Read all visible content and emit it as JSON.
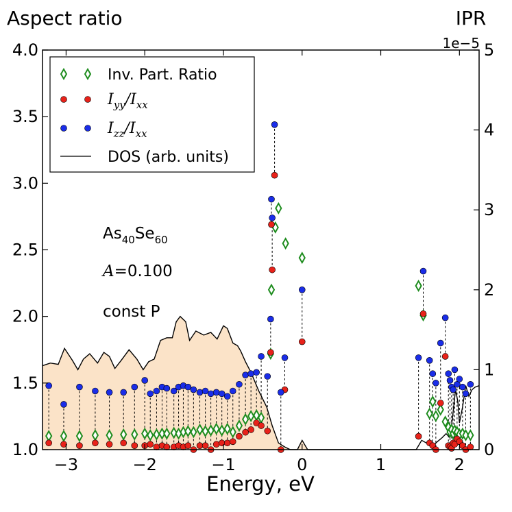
{
  "chart_data": {
    "type": "scatter",
    "left_title": "Aspect ratio",
    "right_title": "IPR",
    "right_multiplier": "1e−5",
    "xlabel": "Energy, eV",
    "xlim": [
      -3.3,
      2.25
    ],
    "ylim_left": [
      1.0,
      4.0
    ],
    "ylim_right": [
      0,
      5
    ],
    "x_ticks": [
      -3,
      -2,
      -1,
      0,
      1,
      2
    ],
    "x_tick_labels": [
      "−3",
      "−2",
      "−1",
      "0",
      "1",
      "2"
    ],
    "y_left_ticks": [
      1.0,
      1.5,
      2.0,
      2.5,
      3.0,
      3.5,
      4.0
    ],
    "y_left_tick_labels": [
      "1.0",
      "1.5",
      "2.0",
      "2.5",
      "3.0",
      "3.5",
      "4.0"
    ],
    "y_right_ticks": [
      0,
      1,
      2,
      3,
      4,
      5
    ],
    "y_right_tick_labels": [
      "0",
      "1",
      "2",
      "3",
      "4",
      "5"
    ],
    "annotations": {
      "material": "As",
      "material_sub1": "40",
      "material_mid": "Se",
      "material_sub2": "60",
      "param_symbol": "A",
      "param_value": "=0.100",
      "condition": "const P"
    },
    "legend": {
      "ipr": "Inv. Part. Ratio",
      "iyy_base": "I",
      "iyy_sub": "yy",
      "izz_sub": "zz",
      "ixx_sub": "xx",
      "slash": "/",
      "dos": "DOS (arb. units)"
    },
    "colors": {
      "ipr": "#1e8c1e",
      "iyy": "#e8221a",
      "izz": "#1a2de8",
      "dos_fill": "#fbe3c8",
      "dos_line": "#000000"
    },
    "dos_curve": [
      [
        -3.3,
        1.63
      ],
      [
        -3.2,
        1.65
      ],
      [
        -3.1,
        1.64
      ],
      [
        -3.02,
        1.76
      ],
      [
        -2.92,
        1.67
      ],
      [
        -2.85,
        1.6
      ],
      [
        -2.78,
        1.68
      ],
      [
        -2.7,
        1.72
      ],
      [
        -2.6,
        1.65
      ],
      [
        -2.52,
        1.73
      ],
      [
        -2.45,
        1.7
      ],
      [
        -2.38,
        1.61
      ],
      [
        -2.3,
        1.67
      ],
      [
        -2.2,
        1.75
      ],
      [
        -2.1,
        1.68
      ],
      [
        -2.02,
        1.6
      ],
      [
        -1.95,
        1.66
      ],
      [
        -1.88,
        1.68
      ],
      [
        -1.8,
        1.82
      ],
      [
        -1.72,
        1.84
      ],
      [
        -1.65,
        1.84
      ],
      [
        -1.6,
        1.96
      ],
      [
        -1.55,
        2.0
      ],
      [
        -1.48,
        1.96
      ],
      [
        -1.43,
        1.82
      ],
      [
        -1.35,
        1.89
      ],
      [
        -1.25,
        1.86
      ],
      [
        -1.16,
        1.88
      ],
      [
        -1.08,
        1.83
      ],
      [
        -1.0,
        1.93
      ],
      [
        -0.95,
        1.91
      ],
      [
        -0.88,
        1.8
      ],
      [
        -0.82,
        1.78
      ],
      [
        -0.78,
        1.74
      ],
      [
        -0.72,
        1.66
      ],
      [
        -0.65,
        1.58
      ],
      [
        -0.55,
        1.44
      ],
      [
        -0.45,
        1.32
      ],
      [
        -0.38,
        1.18
      ],
      [
        -0.3,
        1.05
      ],
      [
        -0.22,
        1.02
      ],
      [
        -0.15,
        1.0
      ],
      [
        -0.06,
        1.0
      ],
      [
        0.0,
        1.07
      ],
      [
        0.07,
        1.0
      ],
      [
        0.2,
        1.0
      ],
      [
        1.0,
        1.0
      ],
      [
        1.45,
        1.0
      ],
      [
        1.52,
        1.07
      ],
      [
        1.58,
        1.05
      ],
      [
        1.65,
        1.02
      ],
      [
        1.72,
        1.06
      ],
      [
        1.78,
        1.09
      ],
      [
        1.83,
        1.12
      ],
      [
        1.88,
        1.09
      ],
      [
        1.92,
        1.28
      ],
      [
        1.95,
        1.45
      ],
      [
        1.98,
        1.36
      ],
      [
        2.0,
        1.2
      ],
      [
        2.04,
        1.32
      ],
      [
        2.08,
        1.48
      ],
      [
        2.12,
        1.4
      ],
      [
        2.16,
        1.45
      ],
      [
        2.2,
        1.47
      ],
      [
        2.25,
        1.48
      ]
    ],
    "aspect_points": [
      {
        "e": -3.22,
        "izz": 1.48,
        "iyy": 1.05
      },
      {
        "e": -3.03,
        "izz": 1.34,
        "iyy": 1.04
      },
      {
        "e": -2.83,
        "izz": 1.47,
        "iyy": 1.03
      },
      {
        "e": -2.63,
        "izz": 1.44,
        "iyy": 1.05
      },
      {
        "e": -2.45,
        "izz": 1.43,
        "iyy": 1.04
      },
      {
        "e": -2.27,
        "izz": 1.43,
        "iyy": 1.05
      },
      {
        "e": -2.13,
        "izz": 1.47,
        "iyy": 1.03
      },
      {
        "e": -2.0,
        "izz": 1.52,
        "iyy": 1.03
      },
      {
        "e": -1.93,
        "izz": 1.42,
        "iyy": 1.04
      },
      {
        "e": -1.85,
        "izz": 1.44,
        "iyy": 1.02
      },
      {
        "e": -1.78,
        "izz": 1.47,
        "iyy": 1.03
      },
      {
        "e": -1.72,
        "izz": 1.46,
        "iyy": 1.02
      },
      {
        "e": -1.63,
        "izz": 1.44,
        "iyy": 1.02
      },
      {
        "e": -1.57,
        "izz": 1.47,
        "iyy": 1.03
      },
      {
        "e": -1.51,
        "izz": 1.48,
        "iyy": 1.02
      },
      {
        "e": -1.45,
        "izz": 1.47,
        "iyy": 1.03
      },
      {
        "e": -1.38,
        "izz": 1.45,
        "iyy": 1.0
      },
      {
        "e": -1.3,
        "izz": 1.43,
        "iyy": 1.03
      },
      {
        "e": -1.23,
        "izz": 1.44,
        "iyy": 1.03
      },
      {
        "e": -1.16,
        "izz": 1.42,
        "iyy": 1.0
      },
      {
        "e": -1.09,
        "izz": 1.43,
        "iyy": 1.04
      },
      {
        "e": -1.02,
        "izz": 1.42,
        "iyy": 1.05
      },
      {
        "e": -0.95,
        "izz": 1.4,
        "iyy": 1.05
      },
      {
        "e": -0.88,
        "izz": 1.44,
        "iyy": 1.06
      },
      {
        "e": -0.8,
        "izz": 1.49,
        "iyy": 1.1
      },
      {
        "e": -0.72,
        "izz": 1.56,
        "iyy": 1.13
      },
      {
        "e": -0.65,
        "izz": 1.57,
        "iyy": 1.15
      },
      {
        "e": -0.58,
        "izz": 1.58,
        "iyy": 1.2
      },
      {
        "e": -0.52,
        "izz": 1.7,
        "iyy": 1.18
      },
      {
        "e": -0.44,
        "izz": 1.55,
        "iyy": 1.14
      },
      {
        "e": -0.4,
        "izz": 1.98,
        "iyy": 1.73
      },
      {
        "e": -0.39,
        "izz": 2.88,
        "iyy": 2.69
      },
      {
        "e": -0.38,
        "izz": 2.74,
        "iyy": 2.35
      },
      {
        "e": -0.35,
        "izz": 3.44,
        "iyy": 3.06
      },
      {
        "e": -0.27,
        "izz": 1.43,
        "iyy": 1.0
      },
      {
        "e": -0.22,
        "izz": 1.69,
        "iyy": 1.45
      },
      {
        "e": 0.0,
        "izz": 2.2,
        "iyy": 1.81
      },
      {
        "e": 1.48,
        "izz": 1.69,
        "iyy": 1.1
      },
      {
        "e": 1.54,
        "izz": 2.34,
        "iyy": 2.02
      },
      {
        "e": 1.62,
        "izz": 1.67,
        "iyy": 1.05
      },
      {
        "e": 1.66,
        "izz": 1.57,
        "iyy": 1.03
      },
      {
        "e": 1.7,
        "izz": 1.5,
        "iyy": 1.0
      },
      {
        "e": 1.76,
        "izz": 1.8,
        "iyy": 1.35
      },
      {
        "e": 1.82,
        "izz": 1.99,
        "iyy": 1.7
      },
      {
        "e": 1.86,
        "izz": 1.57,
        "iyy": 1.03
      },
      {
        "e": 1.88,
        "izz": 1.52,
        "iyy": 1.02
      },
      {
        "e": 1.9,
        "izz": 1.47,
        "iyy": 1.01
      },
      {
        "e": 1.92,
        "izz": 1.45,
        "iyy": 1.05
      },
      {
        "e": 1.94,
        "izz": 1.6,
        "iyy": 1.04
      },
      {
        "e": 1.97,
        "izz": 1.49,
        "iyy": 1.08
      },
      {
        "e": 2.0,
        "izz": 1.53,
        "iyy": 1.06
      },
      {
        "e": 2.04,
        "izz": 1.47,
        "iyy": 1.03
      },
      {
        "e": 2.08,
        "izz": 1.42,
        "iyy": 1.0
      },
      {
        "e": 2.14,
        "izz": 1.49,
        "iyy": 1.02
      }
    ],
    "ipr_points": [
      {
        "e": -3.22,
        "ipr": 0.17
      },
      {
        "e": -3.03,
        "ipr": 0.17
      },
      {
        "e": -2.83,
        "ipr": 0.17
      },
      {
        "e": -2.63,
        "ipr": 0.18
      },
      {
        "e": -2.45,
        "ipr": 0.18
      },
      {
        "e": -2.27,
        "ipr": 0.19
      },
      {
        "e": -2.13,
        "ipr": 0.19
      },
      {
        "e": -2.0,
        "ipr": 0.2
      },
      {
        "e": -1.93,
        "ipr": 0.18
      },
      {
        "e": -1.85,
        "ipr": 0.19
      },
      {
        "e": -1.78,
        "ipr": 0.2
      },
      {
        "e": -1.72,
        "ipr": 0.2
      },
      {
        "e": -1.63,
        "ipr": 0.21
      },
      {
        "e": -1.57,
        "ipr": 0.2
      },
      {
        "e": -1.51,
        "ipr": 0.22
      },
      {
        "e": -1.45,
        "ipr": 0.23
      },
      {
        "e": -1.38,
        "ipr": 0.22
      },
      {
        "e": -1.3,
        "ipr": 0.25
      },
      {
        "e": -1.23,
        "ipr": 0.23
      },
      {
        "e": -1.16,
        "ipr": 0.24
      },
      {
        "e": -1.09,
        "ipr": 0.26
      },
      {
        "e": -1.02,
        "ipr": 0.24
      },
      {
        "e": -0.95,
        "ipr": 0.26
      },
      {
        "e": -0.88,
        "ipr": 0.22
      },
      {
        "e": -0.8,
        "ipr": 0.3
      },
      {
        "e": -0.72,
        "ipr": 0.38
      },
      {
        "e": -0.65,
        "ipr": 0.42
      },
      {
        "e": -0.58,
        "ipr": 0.43
      },
      {
        "e": -0.52,
        "ipr": 0.4
      },
      {
        "e": -0.4,
        "ipr": 1.2
      },
      {
        "e": -0.39,
        "ipr": 2.0
      },
      {
        "e": -0.34,
        "ipr": 2.78
      },
      {
        "e": -0.3,
        "ipr": 3.02
      },
      {
        "e": -0.21,
        "ipr": 2.58
      },
      {
        "e": 0.0,
        "ipr": 2.4
      },
      {
        "e": 1.48,
        "ipr": 2.05
      },
      {
        "e": 1.54,
        "ipr": 1.68
      },
      {
        "e": 1.62,
        "ipr": 0.45
      },
      {
        "e": 1.66,
        "ipr": 0.6
      },
      {
        "e": 1.7,
        "ipr": 0.42
      },
      {
        "e": 1.76,
        "ipr": 0.5
      },
      {
        "e": 1.82,
        "ipr": 0.35
      },
      {
        "e": 1.86,
        "ipr": 0.28
      },
      {
        "e": 1.88,
        "ipr": 0.22
      },
      {
        "e": 1.9,
        "ipr": 0.25
      },
      {
        "e": 1.92,
        "ipr": 0.2
      },
      {
        "e": 1.94,
        "ipr": 0.24
      },
      {
        "e": 1.97,
        "ipr": 0.22
      },
      {
        "e": 2.0,
        "ipr": 0.19
      },
      {
        "e": 2.04,
        "ipr": 0.2
      },
      {
        "e": 2.08,
        "ipr": 0.18
      },
      {
        "e": 2.14,
        "ipr": 0.18
      }
    ]
  }
}
